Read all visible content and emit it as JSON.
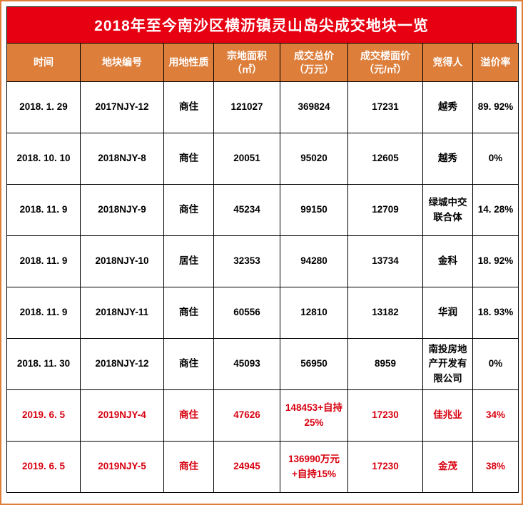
{
  "title": "2018年至今南沙区横沥镇灵山岛尖成交地块一览",
  "colors": {
    "title_bg": "#e60012",
    "title_text": "#ffffff",
    "header_bg": "#dd7e3b",
    "header_text": "#ffffff",
    "border": "#000000",
    "outer_border": "#dd7e3b",
    "row_text": "#000000",
    "highlight_text": "#d7000f"
  },
  "chart_data": {
    "type": "table",
    "title": "2018年至今南沙区横沥镇灵山岛尖成交地块一览",
    "columns": [
      "时间",
      "地块编号",
      "用地性质",
      "宗地面积\n（㎡）",
      "成交总价\n（万元）",
      "成交楼面价\n（元/㎡）",
      "竞得人",
      "溢价率"
    ],
    "rows": [
      [
        "2018. 1. 29",
        "2017NJY-12",
        "商住",
        "121027",
        "369824",
        "17231",
        "越秀",
        "89. 92%"
      ],
      [
        "2018. 10. 10",
        "2018NJY-8",
        "商住",
        "20051",
        "95020",
        "12605",
        "越秀",
        "0%"
      ],
      [
        "2018. 11. 9",
        "2018NJY-9",
        "商住",
        "45234",
        "99150",
        "12709",
        "绿城中交联合体",
        "14. 28%"
      ],
      [
        "2018. 11. 9",
        "2018NJY-10",
        "居住",
        "32353",
        "94280",
        "13734",
        "金科",
        "18. 92%"
      ],
      [
        "2018. 11. 9",
        "2018NJY-11",
        "商住",
        "60556",
        "12810",
        "13182",
        "华润",
        "18. 93%"
      ],
      [
        "2018. 11. 30",
        "2018NJY-12",
        "商住",
        "45093",
        "56950",
        "8959",
        "南投房地产开发有限公司",
        "0%"
      ],
      [
        "2019. 6. 5",
        "2019NJY-4",
        "商住",
        "47626",
        "148453+自持25%",
        "17230",
        "佳兆业",
        "34%"
      ],
      [
        "2019. 6. 5",
        "2019NJY-5",
        "商住",
        "24945",
        "136990万元+自持15%",
        "17230",
        "金茂",
        "38%"
      ]
    ],
    "highlighted_rows": [
      6,
      7
    ]
  }
}
